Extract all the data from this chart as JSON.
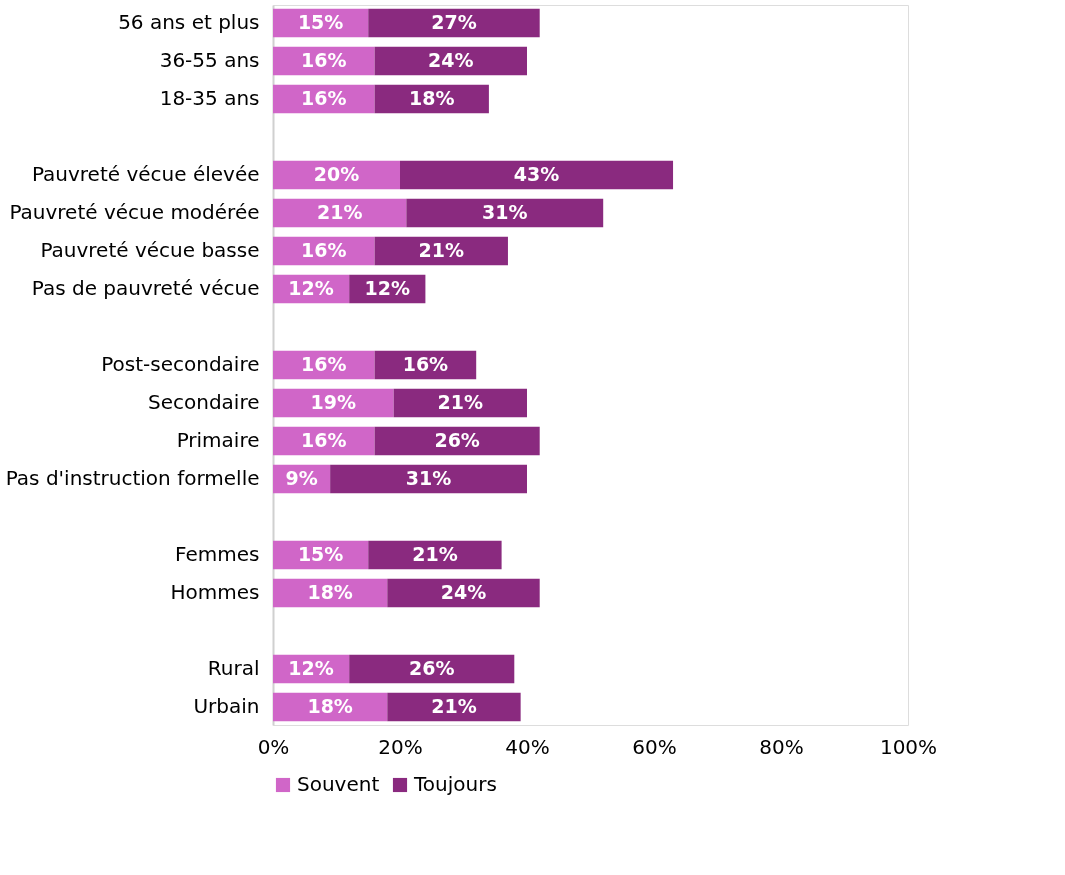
{
  "chart_data": {
    "type": "bar",
    "orientation": "horizontal",
    "stacked": true,
    "categories": [
      "56 ans et plus",
      "36-55 ans",
      "18-35 ans",
      null,
      "Pauvreté vécue élevée",
      "Pauvreté vécue modérée",
      "Pauvreté vécue basse",
      "Pas de pauvreté vécue",
      null,
      "Post-secondaire",
      "Secondaire",
      "Primaire",
      "Pas d'instruction formelle",
      null,
      "Femmes",
      "Hommes",
      null,
      "Rural",
      "Urbain"
    ],
    "series": [
      {
        "name": "Souvent",
        "color": "#d066c8",
        "values": [
          15,
          16,
          16,
          null,
          20,
          21,
          16,
          12,
          null,
          16,
          19,
          16,
          9,
          null,
          15,
          18,
          null,
          12,
          18
        ],
        "value_labels": [
          "15%",
          "16%",
          "16%",
          null,
          "20%",
          "21%",
          "16%",
          "12%",
          null,
          "16%",
          "19%",
          "16%",
          "9%",
          null,
          "15%",
          "18%",
          null,
          "12%",
          "18%"
        ]
      },
      {
        "name": "Toujours",
        "color": "#8a2a7f",
        "values": [
          27,
          24,
          18,
          null,
          43,
          31,
          21,
          12,
          null,
          16,
          21,
          26,
          31,
          null,
          21,
          24,
          null,
          26,
          21
        ],
        "value_labels": [
          "27%",
          "24%",
          "18%",
          null,
          "43%",
          "31%",
          "21%",
          "12%",
          null,
          "16%",
          "21%",
          "26%",
          "31%",
          null,
          "21%",
          "24%",
          null,
          "26%",
          "21%"
        ]
      }
    ],
    "xlim": [
      0,
      100
    ],
    "xticks": [
      {
        "value": 0,
        "label": "0%"
      },
      {
        "value": 20,
        "label": "20%"
      },
      {
        "value": 40,
        "label": "40%"
      },
      {
        "value": 60,
        "label": "60%"
      },
      {
        "value": 80,
        "label": "80%"
      },
      {
        "value": 100,
        "label": "100%"
      }
    ],
    "grid": false,
    "legend": "bottom"
  }
}
